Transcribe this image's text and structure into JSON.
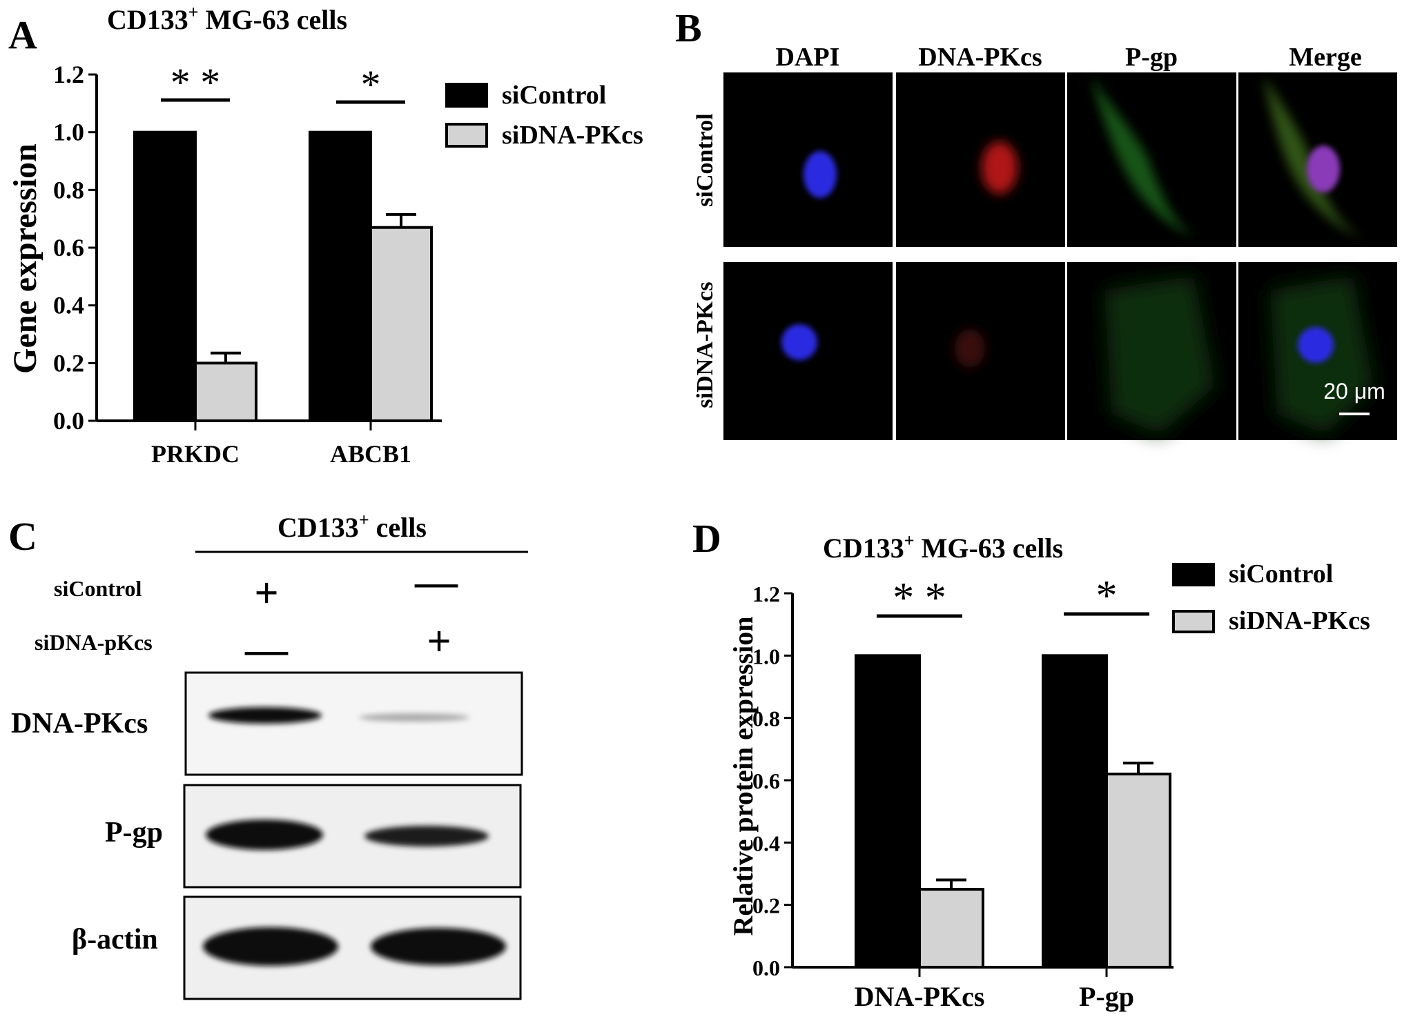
{
  "panels": {
    "A": {
      "letter": "A",
      "title_main": "CD133",
      "title_sup": "+",
      "title_rest": " MG-63 cells",
      "ylabel": "Gene expression",
      "yticks": [
        "0.0",
        "0.2",
        "0.4",
        "0.6",
        "0.8",
        "1.0",
        "1.2"
      ],
      "legend": [
        "siControl",
        "siDNA-PKcs"
      ]
    },
    "B": {
      "letter": "B",
      "columns": [
        "DAPI",
        "DNA-PKcs",
        "P-gp",
        "Merge"
      ],
      "rows": [
        "siControl",
        "siDNA-PKcs"
      ],
      "scale_bar": "20 μm"
    },
    "C": {
      "letter": "C",
      "header_main": "CD133",
      "header_sup": "+",
      "header_rest": " cells",
      "treatments": [
        {
          "label": "siControl",
          "lane1": "+",
          "lane2": "—"
        },
        {
          "label": "siDNA-pKcs",
          "lane1": "—",
          "lane2": "+"
        }
      ],
      "blots": [
        "DNA-PKcs",
        "P-gp",
        "β-actin"
      ]
    },
    "D": {
      "letter": "D",
      "title_main": "CD133",
      "title_sup": "+",
      "title_rest": " MG-63 cells",
      "ylabel": "Relative protein  expression",
      "yticks": [
        "0.0",
        "0.2",
        "0.4",
        "0.6",
        "0.8",
        "1.0",
        "1.2"
      ],
      "legend": [
        "siControl",
        "siDNA-PKcs"
      ]
    }
  },
  "colors": {
    "siControl": "#000000",
    "siDNA-PKcs": "#d3d3d3",
    "dapi": "#2a2ae0",
    "dna_pkcs": "#cc1a1a",
    "pgp": "#2e8a2e"
  },
  "chart_data": [
    {
      "type": "bar",
      "title": "CD133+ MG-63 cells",
      "xlabel": "",
      "ylabel": "Gene expression",
      "categories": [
        "PRKDC",
        "ABCB1"
      ],
      "series": [
        {
          "name": "siControl",
          "values": [
            1.0,
            1.0
          ],
          "errors": [
            0,
            0
          ]
        },
        {
          "name": "siDNA-PKcs",
          "values": [
            0.2,
            0.67
          ],
          "errors": [
            0.035,
            0.045
          ]
        }
      ],
      "significance": [
        "* *",
        "*"
      ],
      "ylim": [
        0,
        1.2
      ],
      "legend": "top-right",
      "grid": false
    },
    {
      "type": "bar",
      "title": "CD133+ MG-63 cells",
      "xlabel": "",
      "ylabel": "Relative protein  expression",
      "categories": [
        "DNA-PKcs",
        "P-gp"
      ],
      "series": [
        {
          "name": "siControl",
          "values": [
            1.0,
            1.0
          ],
          "errors": [
            0,
            0
          ]
        },
        {
          "name": "siDNA-PKcs",
          "values": [
            0.25,
            0.62
          ],
          "errors": [
            0.03,
            0.035
          ]
        }
      ],
      "significance": [
        "* *",
        "*"
      ],
      "ylim": [
        0,
        1.2
      ],
      "legend": "top-right",
      "grid": false
    }
  ]
}
